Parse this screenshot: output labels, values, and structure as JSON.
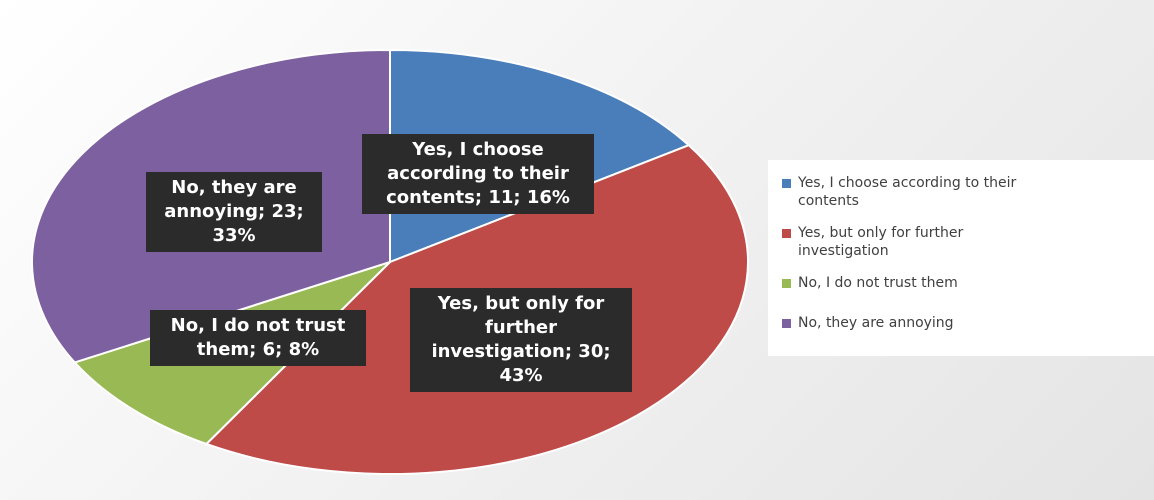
{
  "chart_data": {
    "type": "pie",
    "title": "",
    "slices": [
      {
        "name": "Yes, I choose according to their contents",
        "value": 11,
        "percent": 16,
        "color": "#4a7ebb",
        "data_label": "Yes, I choose according to their contents; 11; 16%",
        "legend_label": "Yes, I choose according to their\ncontents"
      },
      {
        "name": "Yes, but only for further investigation",
        "value": 30,
        "percent": 43,
        "color": "#be4b48",
        "data_label": "Yes, but only for further investigation; 30; 43%",
        "legend_label": "Yes, but only for further\ninvestigation"
      },
      {
        "name": "No, I do not trust them",
        "value": 6,
        "percent": 8,
        "color": "#98b954",
        "data_label": "No, I do not trust them; 6; 8%",
        "legend_label": "No, I do not trust them"
      },
      {
        "name": "No, they are annoying",
        "value": 23,
        "percent": 33,
        "color": "#7d60a0",
        "data_label": "No, they are annoying; 23; 33%",
        "legend_label": "No, they are annoying"
      }
    ],
    "legend_position": "right"
  }
}
